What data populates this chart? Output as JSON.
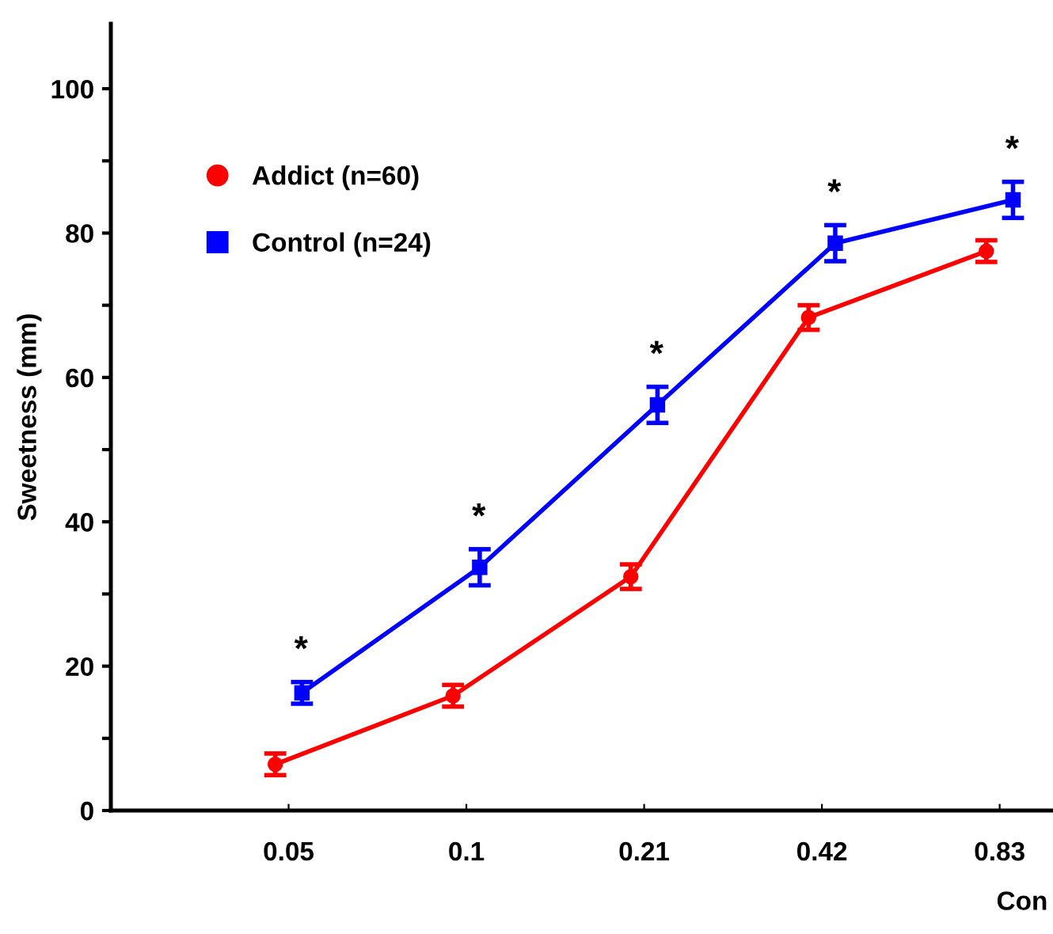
{
  "chart_data": {
    "type": "line",
    "ylabel": "Sweetness (mm)",
    "xlabel": "Con",
    "categories": [
      "0.05",
      "0.1",
      "0.21",
      "0.42",
      "0.83"
    ],
    "series": [
      {
        "name": "Addict (n=60)",
        "color": "#ff0000",
        "marker": "circle",
        "values": [
          6.4,
          15.9,
          32.4,
          68.3,
          77.5
        ],
        "errors": [
          1.5,
          1.5,
          1.7,
          1.7,
          1.5
        ]
      },
      {
        "name": "Control (n=24)",
        "color": "#0000ff",
        "marker": "square",
        "values": [
          16.3,
          33.7,
          56.2,
          78.6,
          84.6
        ],
        "errors": [
          1.5,
          2.5,
          2.5,
          2.5,
          2.5
        ]
      }
    ],
    "ylim": [
      0,
      109
    ],
    "yticks": [
      0,
      {
        "value": 10,
        "label": null
      },
      20,
      {
        "value": 30,
        "label": null
      },
      40,
      {
        "value": 50,
        "label": null
      },
      60,
      {
        "value": 70,
        "label": null
      },
      80,
      {
        "value": 90,
        "label": null
      },
      100
    ],
    "annotations": [
      "*",
      "*",
      "*",
      "*",
      "*"
    ],
    "legend": "top left",
    "grid": false
  }
}
